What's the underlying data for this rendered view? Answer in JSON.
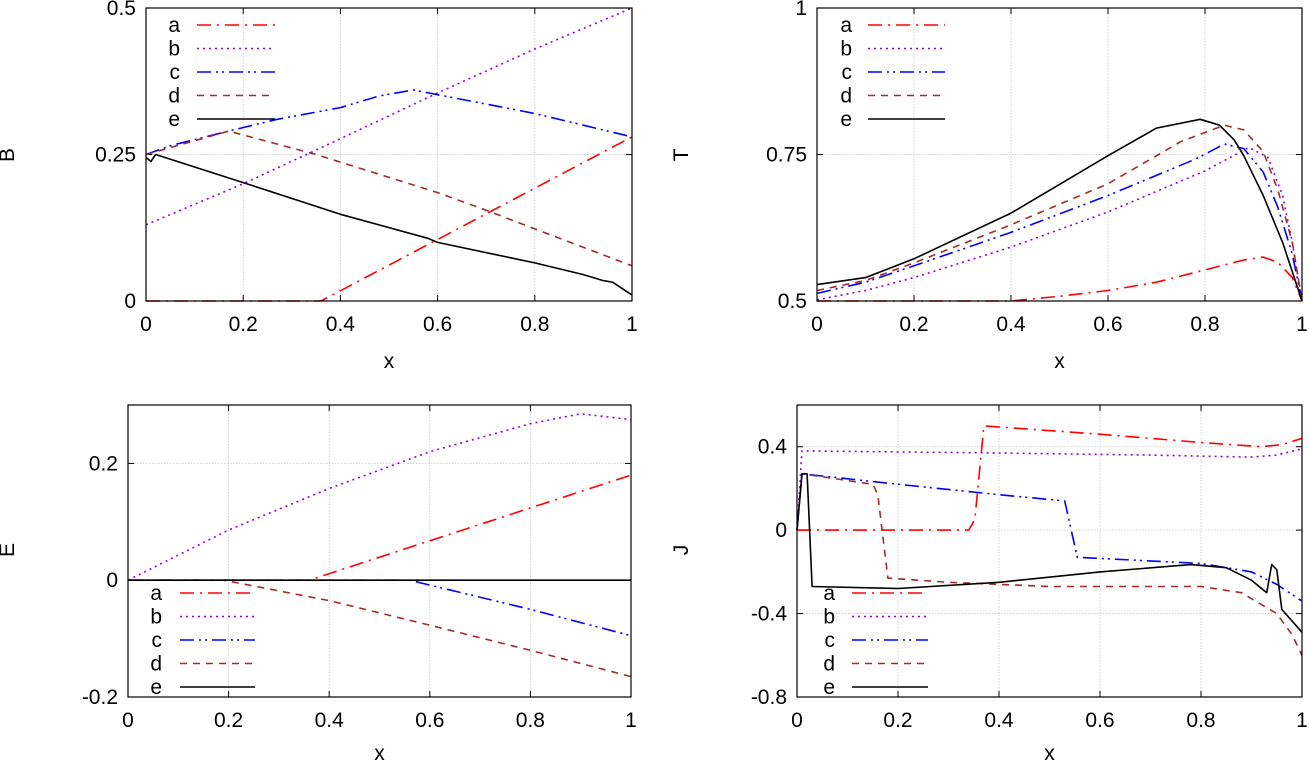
{
  "chart_data": [
    {
      "type": "line",
      "xlabel": "x",
      "ylabel": "B",
      "xlim": [
        0,
        1
      ],
      "ylim": [
        0,
        0.5
      ],
      "xticks": [
        "0",
        "0.2",
        "0.4",
        "0.6",
        "0.8",
        "1"
      ],
      "yticks": [
        "0",
        "0.25",
        "0.5"
      ],
      "ytick_values": [
        0,
        0.25,
        0.5
      ],
      "grid": true,
      "legend_placement": "top-left",
      "series": [
        {
          "name": "a",
          "color": "#ff0000",
          "style": "dash-dot",
          "points": [
            [
              0,
              0
            ],
            [
              0.36,
              0
            ],
            [
              1,
              0.28
            ]
          ]
        },
        {
          "name": "b",
          "color": "#9400d3",
          "style": "dotted",
          "points": [
            [
              0,
              0.13
            ],
            [
              0.2,
              0.2
            ],
            [
              0.4,
              0.277
            ],
            [
              0.6,
              0.355
            ],
            [
              0.8,
              0.43
            ],
            [
              1,
              0.5
            ]
          ]
        },
        {
          "name": "c",
          "color": "#0000ff",
          "style": "dash-dot-dot",
          "points": [
            [
              0,
              0.25
            ],
            [
              0.05,
              0.265
            ],
            [
              0.17,
              0.29
            ],
            [
              0.27,
              0.31
            ],
            [
              0.4,
              0.33
            ],
            [
              0.48,
              0.35
            ],
            [
              0.55,
              0.36
            ],
            [
              0.6,
              0.352
            ],
            [
              0.8,
              0.32
            ],
            [
              1,
              0.28
            ]
          ]
        },
        {
          "name": "d",
          "color": "#a52a2a",
          "style": "dashed",
          "points": [
            [
              0,
              0.25
            ],
            [
              0.17,
              0.29
            ],
            [
              0.35,
              0.25
            ],
            [
              0.6,
              0.185
            ],
            [
              0.7,
              0.155
            ],
            [
              0.8,
              0.123
            ],
            [
              1,
              0.06
            ]
          ]
        },
        {
          "name": "e",
          "color": "#000000",
          "style": "solid",
          "points": [
            [
              0,
              0.245
            ],
            [
              0.01,
              0.238
            ],
            [
              0.02,
              0.25
            ],
            [
              0.2,
              0.202
            ],
            [
              0.4,
              0.148
            ],
            [
              0.58,
              0.107
            ],
            [
              0.6,
              0.1
            ],
            [
              0.8,
              0.065
            ],
            [
              0.9,
              0.045
            ],
            [
              0.94,
              0.035
            ],
            [
              0.96,
              0.032
            ],
            [
              1,
              0.01
            ]
          ]
        }
      ]
    },
    {
      "type": "line",
      "xlabel": "x",
      "ylabel": "T",
      "xlim": [
        0,
        1
      ],
      "ylim": [
        0.5,
        1
      ],
      "xticks": [
        "0",
        "0.2",
        "0.4",
        "0.6",
        "0.8",
        "1"
      ],
      "yticks": [
        "0.5",
        "0.75",
        "1"
      ],
      "ytick_values": [
        0.5,
        0.75,
        1
      ],
      "grid": true,
      "legend_placement": "top-left",
      "series": [
        {
          "name": "a",
          "color": "#ff0000",
          "style": "dash-dot",
          "points": [
            [
              0,
              0.5
            ],
            [
              0.4,
              0.5
            ],
            [
              0.5,
              0.508
            ],
            [
              0.6,
              0.518
            ],
            [
              0.7,
              0.532
            ],
            [
              0.8,
              0.553
            ],
            [
              0.88,
              0.57
            ],
            [
              0.92,
              0.575
            ],
            [
              0.95,
              0.566
            ],
            [
              0.98,
              0.54
            ],
            [
              1,
              0.5
            ]
          ]
        },
        {
          "name": "b",
          "color": "#9400d3",
          "style": "dotted",
          "points": [
            [
              0,
              0.502
            ],
            [
              0.1,
              0.518
            ],
            [
              0.2,
              0.54
            ],
            [
              0.4,
              0.592
            ],
            [
              0.6,
              0.652
            ],
            [
              0.8,
              0.722
            ],
            [
              0.89,
              0.762
            ],
            [
              0.93,
              0.745
            ],
            [
              0.96,
              0.68
            ],
            [
              0.98,
              0.6
            ],
            [
              1,
              0.5
            ]
          ]
        },
        {
          "name": "c",
          "color": "#0000ff",
          "style": "dash-dot-dot",
          "points": [
            [
              0,
              0.513
            ],
            [
              0.1,
              0.532
            ],
            [
              0.2,
              0.56
            ],
            [
              0.4,
              0.617
            ],
            [
              0.6,
              0.68
            ],
            [
              0.78,
              0.742
            ],
            [
              0.84,
              0.768
            ],
            [
              0.88,
              0.76
            ],
            [
              0.92,
              0.72
            ],
            [
              0.95,
              0.66
            ],
            [
              0.98,
              0.58
            ],
            [
              1,
              0.5
            ]
          ]
        },
        {
          "name": "d",
          "color": "#a52a2a",
          "style": "dashed",
          "points": [
            [
              0,
              0.518
            ],
            [
              0.1,
              0.535
            ],
            [
              0.2,
              0.565
            ],
            [
              0.4,
              0.63
            ],
            [
              0.6,
              0.7
            ],
            [
              0.75,
              0.772
            ],
            [
              0.84,
              0.8
            ],
            [
              0.88,
              0.792
            ],
            [
              0.92,
              0.755
            ],
            [
              0.95,
              0.69
            ],
            [
              0.98,
              0.6
            ],
            [
              1,
              0.5
            ]
          ]
        },
        {
          "name": "e",
          "color": "#000000",
          "style": "solid",
          "points": [
            [
              0,
              0.528
            ],
            [
              0.1,
              0.54
            ],
            [
              0.2,
              0.572
            ],
            [
              0.4,
              0.65
            ],
            [
              0.6,
              0.748
            ],
            [
              0.7,
              0.795
            ],
            [
              0.79,
              0.81
            ],
            [
              0.83,
              0.8
            ],
            [
              0.86,
              0.775
            ],
            [
              0.88,
              0.748
            ],
            [
              0.92,
              0.68
            ],
            [
              0.96,
              0.6
            ],
            [
              1,
              0.5
            ]
          ]
        }
      ]
    },
    {
      "type": "line",
      "xlabel": "x",
      "ylabel": "E",
      "xlim": [
        0,
        1
      ],
      "ylim": [
        -0.2,
        0.3
      ],
      "xticks": [
        "0",
        "0.2",
        "0.4",
        "0.6",
        "0.8",
        "1"
      ],
      "yticks": [
        "-0.2",
        "0",
        "0.2"
      ],
      "ytick_values": [
        -0.2,
        0,
        0.2
      ],
      "grid": true,
      "legend_placement": "bottom-left",
      "series": [
        {
          "name": "a",
          "color": "#ff0000",
          "style": "dash-dot",
          "points": [
            [
              0,
              0
            ],
            [
              0.36,
              0
            ],
            [
              1,
              0.18
            ]
          ]
        },
        {
          "name": "b",
          "color": "#9400d3",
          "style": "dotted",
          "points": [
            [
              0,
              0
            ],
            [
              0.2,
              0.086
            ],
            [
              0.4,
              0.157
            ],
            [
              0.6,
              0.22
            ],
            [
              0.8,
              0.268
            ],
            [
              0.9,
              0.285
            ],
            [
              1,
              0.275
            ]
          ]
        },
        {
          "name": "c",
          "color": "#0000ff",
          "style": "dash-dot-dot",
          "points": [
            [
              0,
              0
            ],
            [
              0.56,
              0
            ],
            [
              0.8,
              -0.05
            ],
            [
              1,
              -0.095
            ]
          ]
        },
        {
          "name": "d",
          "color": "#a52a2a",
          "style": "dashed",
          "points": [
            [
              0,
              0
            ],
            [
              0.19,
              0
            ],
            [
              0.4,
              -0.035
            ],
            [
              0.6,
              -0.077
            ],
            [
              0.8,
              -0.12
            ],
            [
              1,
              -0.165
            ]
          ]
        },
        {
          "name": "e",
          "color": "#000000",
          "style": "solid",
          "points": [
            [
              0,
              0
            ],
            [
              1,
              0
            ]
          ]
        }
      ]
    },
    {
      "type": "line",
      "xlabel": "x",
      "ylabel": "J",
      "xlim": [
        0,
        1
      ],
      "ylim": [
        -0.8,
        0.6
      ],
      "xticks": [
        "0",
        "0.2",
        "0.4",
        "0.6",
        "0.8",
        "1"
      ],
      "yticks": [
        "-0.8",
        "-0.4",
        "0",
        "0.4"
      ],
      "ytick_values": [
        -0.8,
        -0.4,
        0,
        0.4
      ],
      "grid": true,
      "legend_placement": "bottom-left",
      "series": [
        {
          "name": "a",
          "color": "#ff0000",
          "style": "dash-dot",
          "points": [
            [
              0,
              0
            ],
            [
              0.34,
              0
            ],
            [
              0.352,
              0.05
            ],
            [
              0.37,
              0.5
            ],
            [
              0.6,
              0.46
            ],
            [
              0.8,
              0.42
            ],
            [
              0.92,
              0.4
            ],
            [
              0.96,
              0.41
            ],
            [
              1,
              0.44
            ]
          ]
        },
        {
          "name": "b",
          "color": "#9400d3",
          "style": "dotted",
          "points": [
            [
              0,
              0
            ],
            [
              0.01,
              0.38
            ],
            [
              0.4,
              0.37
            ],
            [
              0.7,
              0.36
            ],
            [
              0.9,
              0.35
            ],
            [
              0.95,
              0.36
            ],
            [
              1,
              0.39
            ]
          ]
        },
        {
          "name": "c",
          "color": "#0000ff",
          "style": "dash-dot-dot",
          "points": [
            [
              0,
              0
            ],
            [
              0.01,
              0.27
            ],
            [
              0.2,
              0.22
            ],
            [
              0.4,
              0.17
            ],
            [
              0.53,
              0.14
            ],
            [
              0.555,
              -0.13
            ],
            [
              0.8,
              -0.16
            ],
            [
              0.9,
              -0.2
            ],
            [
              0.95,
              -0.26
            ],
            [
              1,
              -0.34
            ]
          ]
        },
        {
          "name": "d",
          "color": "#a52a2a",
          "style": "dashed",
          "points": [
            [
              0,
              0
            ],
            [
              0.01,
              0.27
            ],
            [
              0.15,
              0.22
            ],
            [
              0.16,
              0.17
            ],
            [
              0.18,
              -0.23
            ],
            [
              0.3,
              -0.25
            ],
            [
              0.5,
              -0.27
            ],
            [
              0.8,
              -0.27
            ],
            [
              0.88,
              -0.3
            ],
            [
              0.95,
              -0.4
            ],
            [
              0.98,
              -0.5
            ],
            [
              1,
              -0.6
            ]
          ]
        },
        {
          "name": "e",
          "color": "#000000",
          "style": "solid",
          "points": [
            [
              0,
              0
            ],
            [
              0.01,
              0.27
            ],
            [
              0.02,
              0.27
            ],
            [
              0.03,
              -0.27
            ],
            [
              0.2,
              -0.28
            ],
            [
              0.4,
              -0.25
            ],
            [
              0.6,
              -0.2
            ],
            [
              0.78,
              -0.165
            ],
            [
              0.85,
              -0.18
            ],
            [
              0.9,
              -0.24
            ],
            [
              0.93,
              -0.3
            ],
            [
              0.94,
              -0.165
            ],
            [
              0.95,
              -0.19
            ],
            [
              0.96,
              -0.38
            ],
            [
              1,
              -0.49
            ]
          ]
        }
      ]
    }
  ]
}
